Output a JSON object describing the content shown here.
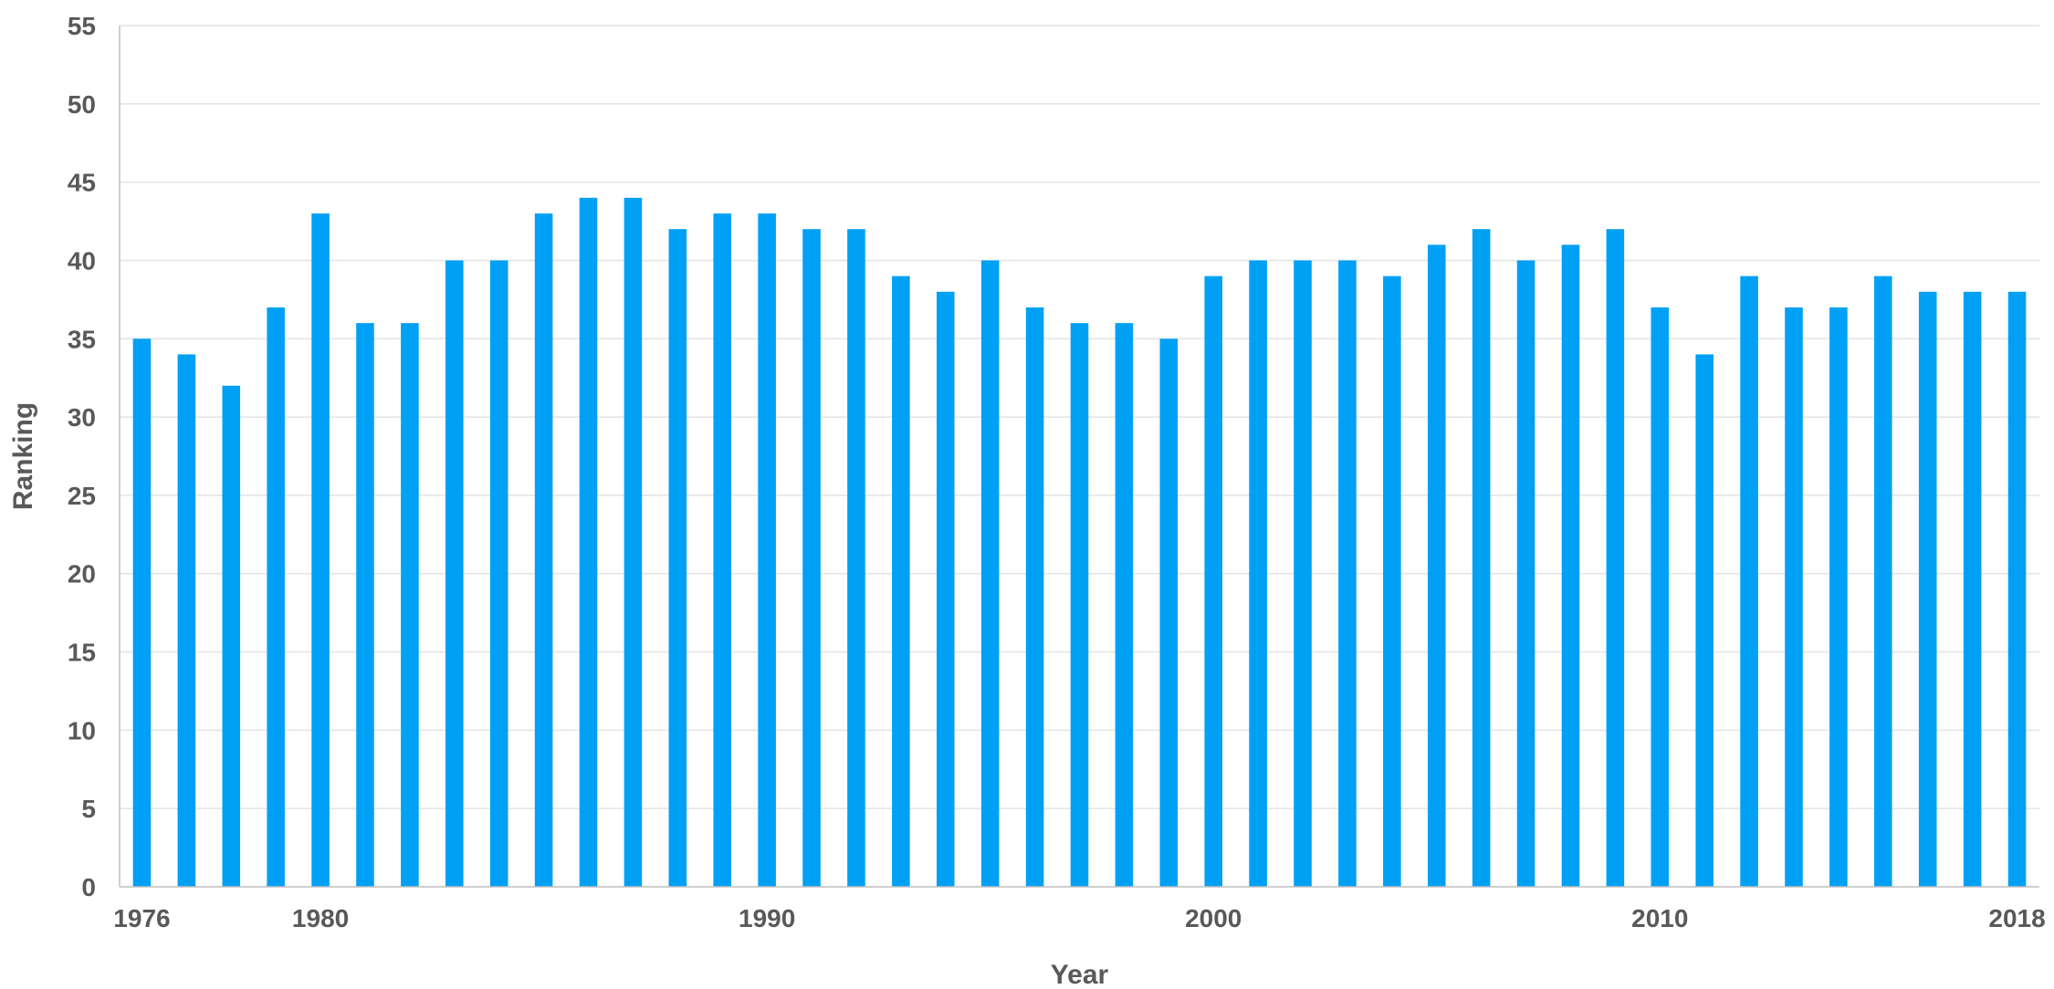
{
  "chart_data": {
    "type": "bar",
    "title": "",
    "xlabel": "Year",
    "ylabel": "Ranking",
    "ylim": [
      0,
      55
    ],
    "ytick_step": 5,
    "grid": true,
    "bar_color": "#00A0F5",
    "categories": [
      1976,
      1977,
      1978,
      1979,
      1980,
      1981,
      1982,
      1983,
      1984,
      1985,
      1986,
      1987,
      1988,
      1989,
      1990,
      1991,
      1992,
      1993,
      1994,
      1995,
      1996,
      1997,
      1998,
      1999,
      2000,
      2001,
      2002,
      2003,
      2004,
      2005,
      2006,
      2007,
      2008,
      2009,
      2010,
      2011,
      2012,
      2013,
      2014,
      2015,
      2016,
      2017,
      2018
    ],
    "xtick_labels": [
      "1976",
      "1980",
      "1990",
      "2000",
      "2010",
      "2018"
    ],
    "values": [
      35,
      34,
      32,
      37,
      43,
      36,
      36,
      40,
      40,
      43,
      44,
      44,
      42,
      43,
      43,
      42,
      42,
      39,
      38,
      40,
      37,
      36,
      36,
      35,
      39,
      40,
      40,
      40,
      39,
      41,
      42,
      40,
      41,
      42,
      37,
      34,
      39,
      37,
      37,
      39,
      38,
      38,
      38
    ]
  }
}
